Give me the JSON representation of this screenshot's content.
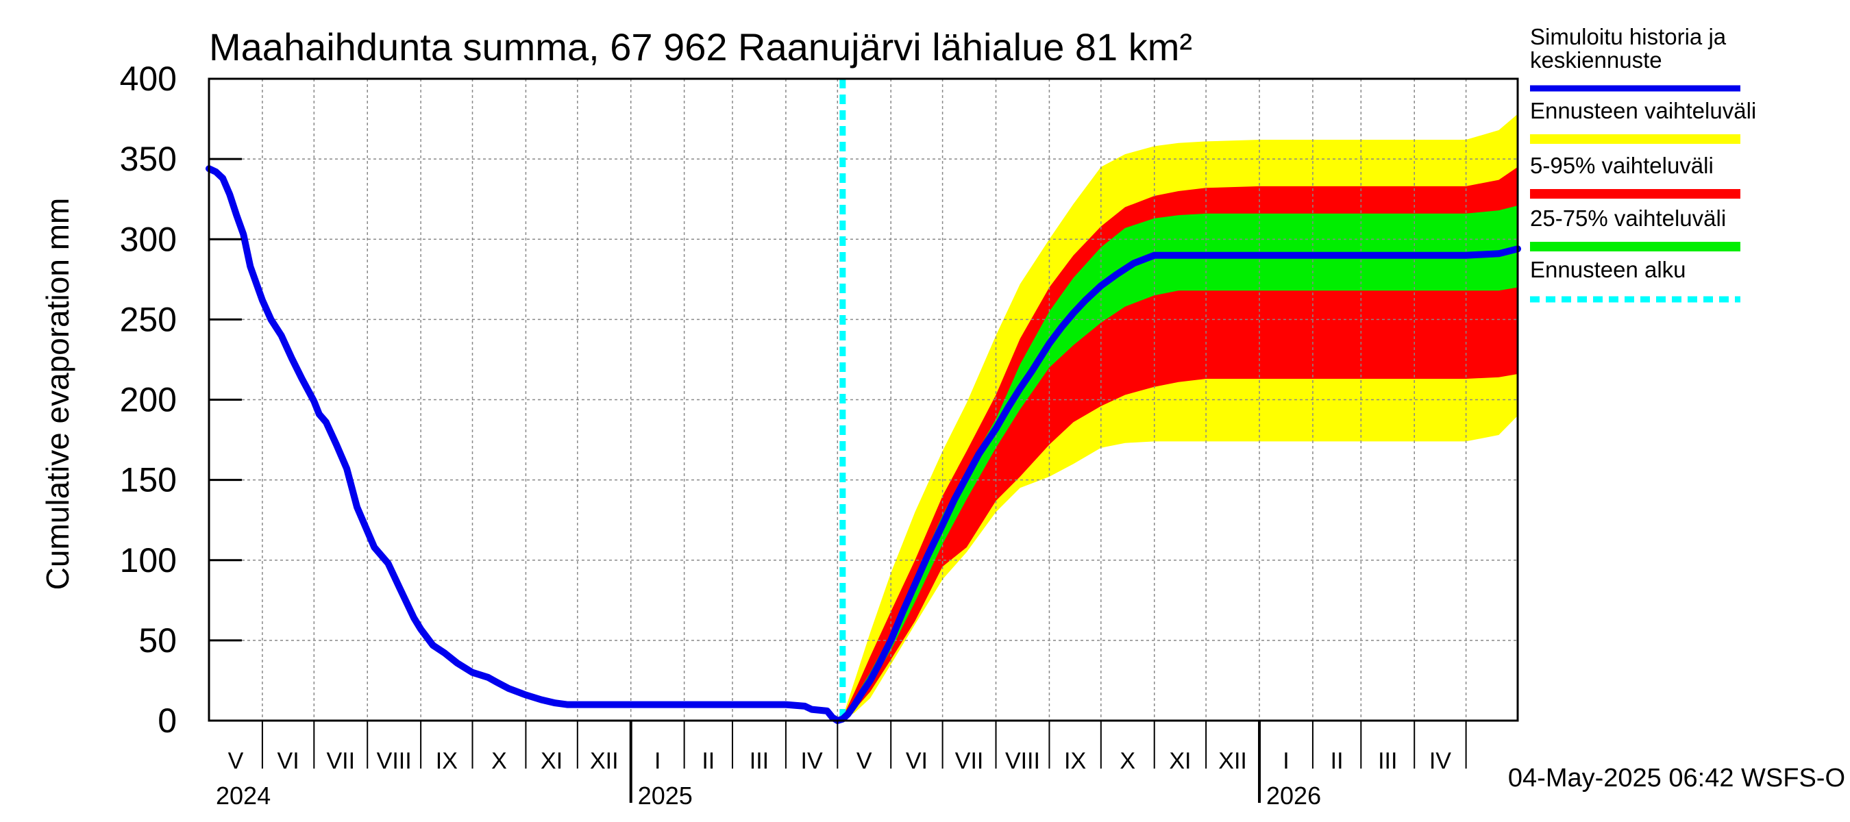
{
  "chart_data": {
    "type": "area",
    "title": "Maahaihdunta summa, 67 962 Raanujärvi lähialue 81 km²",
    "ylabel": "Cumulative evaporation   mm",
    "ylim": [
      0,
      400
    ],
    "yticks": [
      0,
      50,
      100,
      150,
      200,
      250,
      300,
      350,
      400
    ],
    "xlim": [
      "2024-05-01",
      "2026-05-31"
    ],
    "month_labels": [
      "V",
      "VI",
      "VII",
      "VIII",
      "IX",
      "X",
      "XI",
      "XII",
      "I",
      "II",
      "III",
      "IV",
      "V",
      "VI",
      "VII",
      "VIII",
      "IX",
      "X",
      "XI",
      "XII",
      "I",
      "II",
      "III",
      "IV"
    ],
    "year_labels": [
      {
        "date": "2024-05-01",
        "label": "2024"
      },
      {
        "date": "2025-01-01",
        "label": "2025"
      },
      {
        "date": "2026-01-01",
        "label": "2026"
      }
    ],
    "forecast_start": "2025-05-04",
    "legend": {
      "placement": "right",
      "items": [
        {
          "label": "Simuloitu historia ja keskiennuste",
          "color": "#0000ee",
          "style": "line"
        },
        {
          "label": "Ennusteen vaihteluväli",
          "color": "#ffff00",
          "style": "band"
        },
        {
          "label": "5-95% vaihteluväli",
          "color": "#ff0000",
          "style": "band"
        },
        {
          "label": "25-75% vaihteluväli",
          "color": "#00ee00",
          "style": "band"
        },
        {
          "label": "Ennusteen alku",
          "color": "#00ffff",
          "style": "dashed"
        }
      ]
    },
    "series": [
      {
        "name": "Simuloitu historia ja keskiennuste",
        "color": "#0000ee",
        "points": [
          [
            "2024-05-01",
            344
          ],
          [
            "2024-05-05",
            342
          ],
          [
            "2024-05-09",
            338
          ],
          [
            "2024-05-13",
            328
          ],
          [
            "2024-05-17",
            315
          ],
          [
            "2024-05-21",
            303
          ],
          [
            "2024-05-25",
            283
          ],
          [
            "2024-06-01",
            262
          ],
          [
            "2024-06-06",
            250
          ],
          [
            "2024-06-12",
            240
          ],
          [
            "2024-06-18",
            226
          ],
          [
            "2024-06-24",
            213
          ],
          [
            "2024-07-01",
            199
          ],
          [
            "2024-07-04",
            191
          ],
          [
            "2024-07-08",
            186
          ],
          [
            "2024-07-14",
            172
          ],
          [
            "2024-07-20",
            157
          ],
          [
            "2024-07-26",
            133
          ],
          [
            "2024-08-05",
            108
          ],
          [
            "2024-08-13",
            98
          ],
          [
            "2024-08-20",
            82
          ],
          [
            "2024-08-28",
            64
          ],
          [
            "2024-09-01",
            57
          ],
          [
            "2024-09-08",
            47
          ],
          [
            "2024-09-15",
            42
          ],
          [
            "2024-09-22",
            36
          ],
          [
            "2024-10-01",
            30
          ],
          [
            "2024-10-10",
            27
          ],
          [
            "2024-10-15",
            24
          ],
          [
            "2024-10-22",
            20
          ],
          [
            "2024-11-01",
            16
          ],
          [
            "2024-11-10",
            13
          ],
          [
            "2024-11-18",
            11
          ],
          [
            "2024-11-25",
            10
          ],
          [
            "2025-01-01",
            10
          ],
          [
            "2025-04-01",
            10
          ],
          [
            "2025-04-12",
            9
          ],
          [
            "2025-04-16",
            7
          ],
          [
            "2025-04-25",
            6
          ],
          [
            "2025-04-28",
            2
          ],
          [
            "2025-05-01",
            0
          ],
          [
            "2025-05-04",
            1
          ],
          [
            "2025-05-07",
            4
          ],
          [
            "2025-05-11",
            10
          ],
          [
            "2025-05-15",
            17
          ],
          [
            "2025-05-20",
            25
          ],
          [
            "2025-05-25",
            35
          ],
          [
            "2025-06-01",
            50
          ],
          [
            "2025-06-08",
            68
          ],
          [
            "2025-06-15",
            85
          ],
          [
            "2025-06-22",
            102
          ],
          [
            "2025-07-01",
            122
          ],
          [
            "2025-07-08",
            138
          ],
          [
            "2025-07-15",
            152
          ],
          [
            "2025-07-22",
            166
          ],
          [
            "2025-08-01",
            182
          ],
          [
            "2025-08-08",
            195
          ],
          [
            "2025-08-15",
            207
          ],
          [
            "2025-08-22",
            218
          ],
          [
            "2025-09-01",
            235
          ],
          [
            "2025-09-08",
            245
          ],
          [
            "2025-09-15",
            254
          ],
          [
            "2025-09-22",
            262
          ],
          [
            "2025-10-01",
            271
          ],
          [
            "2025-10-10",
            278
          ],
          [
            "2025-10-20",
            285
          ],
          [
            "2025-11-01",
            290
          ],
          [
            "2025-11-15",
            290
          ],
          [
            "2025-12-01",
            290
          ],
          [
            "2026-01-01",
            290
          ],
          [
            "2026-04-01",
            290
          ],
          [
            "2026-05-01",
            290
          ],
          [
            "2026-05-20",
            291
          ],
          [
            "2026-05-31",
            294
          ]
        ]
      }
    ],
    "bands": [
      {
        "name": "Ennusteen vaihteluväli",
        "color": "#ffff00",
        "points": [
          [
            "2025-05-04",
            0,
            2
          ],
          [
            "2025-05-11",
            5,
            25
          ],
          [
            "2025-05-20",
            14,
            55
          ],
          [
            "2025-06-01",
            35,
            92
          ],
          [
            "2025-06-15",
            60,
            130
          ],
          [
            "2025-07-01",
            88,
            168
          ],
          [
            "2025-07-15",
            105,
            198
          ],
          [
            "2025-08-01",
            130,
            240
          ],
          [
            "2025-08-15",
            145,
            272
          ],
          [
            "2025-09-01",
            152,
            300
          ],
          [
            "2025-09-15",
            160,
            322
          ],
          [
            "2025-10-01",
            170,
            345
          ],
          [
            "2025-10-15",
            173,
            353
          ],
          [
            "2025-11-01",
            174,
            358
          ],
          [
            "2025-11-15",
            174,
            360
          ],
          [
            "2025-12-01",
            174,
            361
          ],
          [
            "2026-01-01",
            174,
            362
          ],
          [
            "2026-04-01",
            174,
            362
          ],
          [
            "2026-05-01",
            174,
            362
          ],
          [
            "2026-05-20",
            178,
            368
          ],
          [
            "2026-05-31",
            190,
            378
          ]
        ]
      },
      {
        "name": "5-95% vaihteluväli",
        "color": "#ff0000",
        "points": [
          [
            "2025-05-04",
            0,
            2
          ],
          [
            "2025-05-11",
            7,
            18
          ],
          [
            "2025-05-20",
            18,
            40
          ],
          [
            "2025-06-01",
            38,
            68
          ],
          [
            "2025-06-15",
            62,
            100
          ],
          [
            "2025-07-01",
            96,
            140
          ],
          [
            "2025-07-15",
            108,
            168
          ],
          [
            "2025-08-01",
            137,
            203
          ],
          [
            "2025-08-15",
            152,
            238
          ],
          [
            "2025-09-01",
            172,
            270
          ],
          [
            "2025-09-15",
            186,
            290
          ],
          [
            "2025-10-01",
            196,
            308
          ],
          [
            "2025-10-15",
            203,
            320
          ],
          [
            "2025-11-01",
            208,
            327
          ],
          [
            "2025-11-15",
            211,
            330
          ],
          [
            "2025-12-01",
            213,
            332
          ],
          [
            "2026-01-01",
            213,
            333
          ],
          [
            "2026-04-01",
            213,
            333
          ],
          [
            "2026-05-01",
            213,
            333
          ],
          [
            "2026-05-20",
            214,
            337
          ],
          [
            "2026-05-31",
            216,
            345
          ]
        ]
      },
      {
        "name": "25-75% vaihteluväli",
        "color": "#00ee00",
        "points": [
          [
            "2025-05-04",
            0,
            1
          ],
          [
            "2025-05-11",
            8,
            14
          ],
          [
            "2025-05-20",
            22,
            30
          ],
          [
            "2025-06-01",
            44,
            54
          ],
          [
            "2025-06-15",
            74,
            90
          ],
          [
            "2025-07-01",
            110,
            128
          ],
          [
            "2025-07-15",
            138,
            156
          ],
          [
            "2025-08-01",
            170,
            188
          ],
          [
            "2025-08-15",
            194,
            222
          ],
          [
            "2025-09-01",
            220,
            255
          ],
          [
            "2025-09-15",
            234,
            276
          ],
          [
            "2025-10-01",
            248,
            295
          ],
          [
            "2025-10-15",
            258,
            307
          ],
          [
            "2025-11-01",
            265,
            313
          ],
          [
            "2025-11-15",
            268,
            315
          ],
          [
            "2025-12-01",
            268,
            316
          ],
          [
            "2026-01-01",
            268,
            316
          ],
          [
            "2026-04-01",
            268,
            316
          ],
          [
            "2026-05-01",
            268,
            316
          ],
          [
            "2026-05-20",
            268,
            318
          ],
          [
            "2026-05-31",
            270,
            321
          ]
        ]
      }
    ],
    "footer": "04-May-2025 06:42 WSFS-O"
  }
}
